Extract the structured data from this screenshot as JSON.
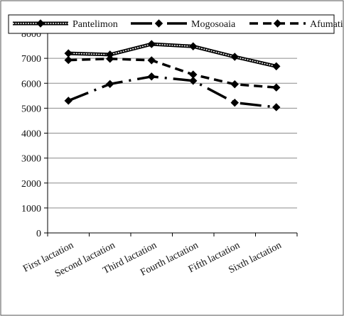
{
  "chart_data": {
    "type": "line",
    "title": "",
    "xlabel": "",
    "ylabel": "",
    "categories": [
      "First lactation",
      "Second lactation",
      "Third lactation",
      "Fourth lactation",
      "Fifth lactation",
      "Sixth lactation"
    ],
    "ylim": [
      0,
      8000
    ],
    "yticks": [
      "0",
      "1000",
      "2000",
      "3000",
      "4000",
      "5000",
      "6000",
      "7000",
      "8000"
    ],
    "grid": true,
    "legend_position": "top",
    "series": [
      {
        "name": "Pantelimon",
        "style": "double-line",
        "color": "#000000",
        "values": [
          7200,
          7150,
          7570,
          7480,
          7060,
          6680
        ]
      },
      {
        "name": "Mogosoaia",
        "style": "long-dash-dot",
        "color": "#000000",
        "values": [
          5300,
          5970,
          6270,
          6100,
          5220,
          5040
        ]
      },
      {
        "name": "Afumati",
        "style": "dashed",
        "color": "#000000",
        "values": [
          6930,
          6980,
          6920,
          6350,
          5960,
          5830
        ]
      }
    ]
  }
}
